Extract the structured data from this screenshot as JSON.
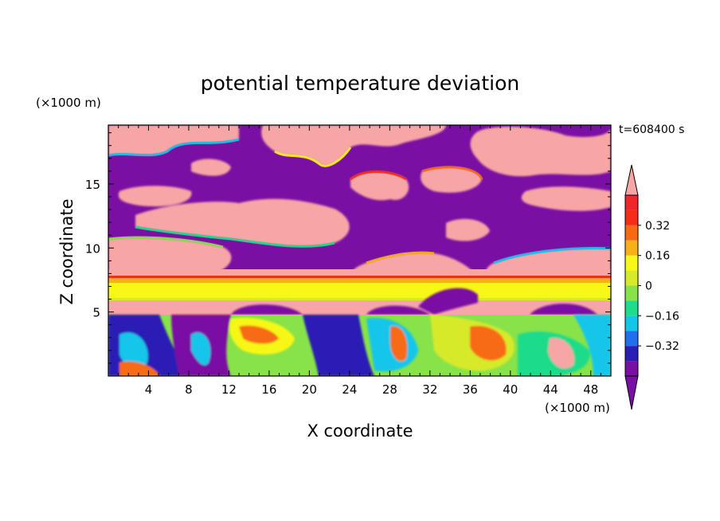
{
  "chart_data": {
    "type": "heatmap",
    "title": "potential temperature deviation",
    "xlabel": "X coordinate",
    "ylabel": "Z coordinate",
    "x_unit": "(×1000 m)",
    "y_unit": "(×1000 m)",
    "time_label": "t=608400 s",
    "xlim": [
      0,
      50
    ],
    "ylim": [
      0,
      19.6
    ],
    "xticks": [
      4,
      8,
      12,
      16,
      20,
      24,
      28,
      32,
      36,
      40,
      44,
      48
    ],
    "yticks": [
      5,
      10,
      15
    ],
    "colorbar": {
      "levels": [
        -0.48,
        -0.4,
        -0.32,
        -0.24,
        -0.16,
        -0.08,
        0,
        0.08,
        0.16,
        0.24,
        0.32,
        0.4,
        0.48
      ],
      "colors": [
        "#7a0fa3",
        "#2a1fb5",
        "#1f6fef",
        "#12c6ea",
        "#1fdc8c",
        "#88e24a",
        "#d6ea2a",
        "#f7f718",
        "#f7b015",
        "#f76a12",
        "#f52c18",
        "#f0262a",
        "#f7a6a6"
      ],
      "tick_labels": [
        "0.32",
        "0.16",
        "0",
        "−0.16",
        "−0.32"
      ],
      "tick_values": [
        0.32,
        0.16,
        0,
        -0.16,
        -0.32
      ],
      "extend": "both"
    },
    "field_layers": [
      {
        "z_range": [
          0,
          5.0
        ],
        "description_level": "mixed",
        "dominant_values": [
          -0.3,
          0.1,
          0.25
        ]
      },
      {
        "z_range": [
          5.0,
          6.0
        ],
        "dominant_values": [
          0.48,
          -0.48
        ]
      },
      {
        "z_range": [
          6.0,
          8.0
        ],
        "dominant_values": [
          0.16,
          0.24
        ]
      },
      {
        "z_range": [
          8.0,
          19.6
        ],
        "dominant_values": [
          0.48,
          -0.48
        ]
      }
    ]
  }
}
